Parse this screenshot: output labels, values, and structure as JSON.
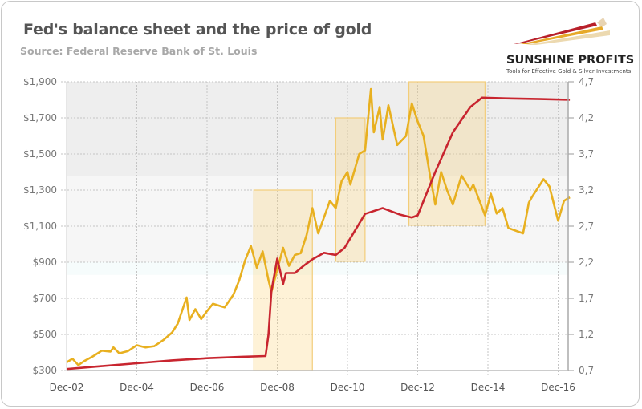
{
  "title": "Fed's balance sheet and the price of gold",
  "subtitle": "Source: Federal Reserve Bank of St. Louis",
  "logo": {
    "name": "SUNSHINE PROFITS",
    "tagline": "Tools for Effective Gold & Silver Investments"
  },
  "chart_data": {
    "type": "line",
    "title": "Fed's balance sheet and the price of gold",
    "x_tick_labels": [
      "Dec-02",
      "Dec-04",
      "Dec-06",
      "Dec-08",
      "Dec-10",
      "Dec-12",
      "Dec-14",
      "Dec-16"
    ],
    "x_ticks": [
      "2002-12",
      "2004-12",
      "2006-12",
      "2008-12",
      "2010-12",
      "2012-12",
      "2014-12",
      "2016-12"
    ],
    "xlim": [
      "2002-12",
      "2017-04"
    ],
    "y_left": {
      "ylim": [
        300,
        1900
      ],
      "tick_labels": [
        "$300",
        "$500",
        "$700",
        "$900",
        "$1,100",
        "$1,300",
        "$1,500",
        "$1,700",
        "$1,900"
      ],
      "ticks": [
        300,
        500,
        700,
        900,
        1100,
        1300,
        1500,
        1700,
        1900
      ]
    },
    "y_right": {
      "ylim": [
        0.7,
        4.7
      ],
      "tick_labels": [
        "0,7",
        "1,2",
        "1,7",
        "2,2",
        "2,7",
        "3,2",
        "3,7",
        "4,2",
        "4,7"
      ],
      "ticks": [
        0.7,
        1.2,
        1.7,
        2.2,
        2.7,
        3.2,
        3.7,
        4.2,
        4.7
      ]
    },
    "grid": true,
    "legend": "none",
    "background_bands": [
      {
        "from": 1380,
        "to": 1900,
        "color": "#eeeeee"
      },
      {
        "from": 900,
        "to": 1380,
        "color": "#f6f6f6"
      },
      {
        "from": 830,
        "to": 900,
        "color": "#f6fcfc"
      }
    ],
    "highlight_periods": [
      {
        "start": "2008-04",
        "end": "2009-12",
        "y_range": [
          300,
          1300
        ]
      },
      {
        "start": "2010-08",
        "end": "2011-06",
        "y_range": [
          905,
          1700
        ]
      },
      {
        "start": "2012-09",
        "end": "2014-11",
        "y_range": [
          1105,
          1900
        ]
      }
    ],
    "series": [
      {
        "axis": "left",
        "color": "#e8b020",
        "points": [
          [
            "2002-12",
            345
          ],
          [
            "2003-02",
            365
          ],
          [
            "2003-04",
            330
          ],
          [
            "2003-06",
            352
          ],
          [
            "2003-09",
            378
          ],
          [
            "2003-12",
            410
          ],
          [
            "2004-03",
            405
          ],
          [
            "2004-04",
            428
          ],
          [
            "2004-06",
            395
          ],
          [
            "2004-09",
            408
          ],
          [
            "2004-12",
            440
          ],
          [
            "2005-03",
            428
          ],
          [
            "2005-06",
            435
          ],
          [
            "2005-09",
            468
          ],
          [
            "2005-12",
            510
          ],
          [
            "2006-02",
            560
          ],
          [
            "2006-05",
            705
          ],
          [
            "2006-06",
            580
          ],
          [
            "2006-08",
            640
          ],
          [
            "2006-10",
            585
          ],
          [
            "2006-12",
            630
          ],
          [
            "2007-02",
            670
          ],
          [
            "2007-06",
            650
          ],
          [
            "2007-09",
            720
          ],
          [
            "2007-11",
            800
          ],
          [
            "2008-01",
            910
          ],
          [
            "2008-03",
            990
          ],
          [
            "2008-05",
            870
          ],
          [
            "2008-07",
            960
          ],
          [
            "2008-09",
            800
          ],
          [
            "2008-10",
            735
          ],
          [
            "2008-12",
            860
          ],
          [
            "2009-02",
            980
          ],
          [
            "2009-04",
            880
          ],
          [
            "2009-06",
            940
          ],
          [
            "2009-08",
            950
          ],
          [
            "2009-10",
            1050
          ],
          [
            "2009-12",
            1200
          ],
          [
            "2010-02",
            1060
          ],
          [
            "2010-04",
            1150
          ],
          [
            "2010-06",
            1240
          ],
          [
            "2010-08",
            1200
          ],
          [
            "2010-10",
            1350
          ],
          [
            "2010-12",
            1400
          ],
          [
            "2011-01",
            1330
          ],
          [
            "2011-04",
            1500
          ],
          [
            "2011-06",
            1520
          ],
          [
            "2011-08",
            1860
          ],
          [
            "2011-09",
            1620
          ],
          [
            "2011-11",
            1760
          ],
          [
            "2011-12",
            1580
          ],
          [
            "2012-02",
            1770
          ],
          [
            "2012-05",
            1550
          ],
          [
            "2012-08",
            1600
          ],
          [
            "2012-10",
            1780
          ],
          [
            "2012-12",
            1680
          ],
          [
            "2013-02",
            1600
          ],
          [
            "2013-04",
            1400
          ],
          [
            "2013-06",
            1220
          ],
          [
            "2013-08",
            1400
          ],
          [
            "2013-10",
            1300
          ],
          [
            "2013-12",
            1220
          ],
          [
            "2014-03",
            1380
          ],
          [
            "2014-06",
            1300
          ],
          [
            "2014-07",
            1330
          ],
          [
            "2014-11",
            1160
          ],
          [
            "2015-01",
            1280
          ],
          [
            "2015-03",
            1170
          ],
          [
            "2015-05",
            1200
          ],
          [
            "2015-07",
            1090
          ],
          [
            "2015-12",
            1060
          ],
          [
            "2016-02",
            1230
          ],
          [
            "2016-03",
            1260
          ],
          [
            "2016-07",
            1360
          ],
          [
            "2016-09",
            1320
          ],
          [
            "2016-12",
            1130
          ],
          [
            "2017-02",
            1240
          ],
          [
            "2017-04",
            1260
          ]
        ]
      },
      {
        "axis": "right",
        "color": "#c8252f",
        "points": [
          [
            "2002-12",
            0.72
          ],
          [
            "2003-12",
            0.76
          ],
          [
            "2004-12",
            0.8
          ],
          [
            "2005-12",
            0.84
          ],
          [
            "2006-12",
            0.87
          ],
          [
            "2007-12",
            0.89
          ],
          [
            "2008-08",
            0.9
          ],
          [
            "2008-09",
            1.2
          ],
          [
            "2008-10",
            1.8
          ],
          [
            "2008-12",
            2.25
          ],
          [
            "2009-02",
            1.9
          ],
          [
            "2009-03",
            2.05
          ],
          [
            "2009-06",
            2.05
          ],
          [
            "2009-09",
            2.15
          ],
          [
            "2009-12",
            2.24
          ],
          [
            "2010-04",
            2.33
          ],
          [
            "2010-08",
            2.3
          ],
          [
            "2010-11",
            2.4
          ],
          [
            "2011-06",
            2.87
          ],
          [
            "2011-12",
            2.95
          ],
          [
            "2012-02",
            2.92
          ],
          [
            "2012-06",
            2.86
          ],
          [
            "2012-10",
            2.82
          ],
          [
            "2012-12",
            2.85
          ],
          [
            "2013-06",
            3.45
          ],
          [
            "2013-12",
            4.0
          ],
          [
            "2014-06",
            4.35
          ],
          [
            "2014-10",
            4.48
          ],
          [
            "2015-06",
            4.47
          ],
          [
            "2016-06",
            4.46
          ],
          [
            "2017-04",
            4.45
          ]
        ]
      }
    ]
  }
}
